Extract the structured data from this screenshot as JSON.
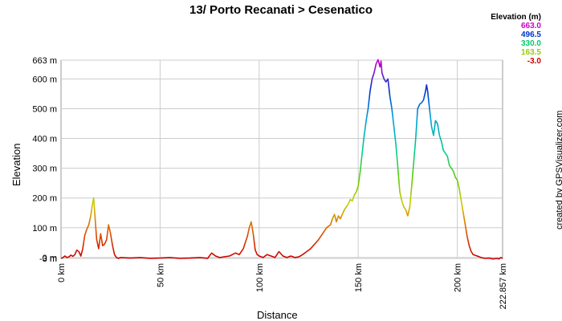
{
  "chart_data": {
    "type": "line",
    "title": "13/ Porto Recanati > Cesenatico",
    "xlabel": "Distance",
    "ylabel": "Elevation",
    "xlim": [
      0,
      222.857
    ],
    "ylim": [
      -3,
      663
    ],
    "x_ticks": [
      {
        "value": 0,
        "label": "0 km"
      },
      {
        "value": 50,
        "label": "50 km"
      },
      {
        "value": 100,
        "label": "100 km"
      },
      {
        "value": 150,
        "label": "150 km"
      },
      {
        "value": 200,
        "label": "200 km"
      },
      {
        "value": 222.857,
        "label": "222.857 km"
      }
    ],
    "y_ticks": [
      {
        "value": 663,
        "label": "663 m"
      },
      {
        "value": 600,
        "label": "600 m"
      },
      {
        "value": 500,
        "label": "500 m"
      },
      {
        "value": 400,
        "label": "400 m"
      },
      {
        "value": 300,
        "label": "300 m"
      },
      {
        "value": 200,
        "label": "200 m"
      },
      {
        "value": 100,
        "label": "100 m"
      },
      {
        "value": 0,
        "label": "0 m"
      },
      {
        "value": -3,
        "label": "-3 m"
      }
    ],
    "grid": true,
    "legend": {
      "title": "Elevation (m)",
      "entries": [
        {
          "label": "663.0",
          "color": "#cc00cc"
        },
        {
          "label": "496.5",
          "color": "#0033cc"
        },
        {
          "label": "330.0",
          "color": "#00cc66"
        },
        {
          "label": "163.5",
          "color": "#99cc00"
        },
        {
          "label": "-3.0",
          "color": "#cc0000"
        }
      ]
    },
    "series": [
      {
        "x": [
          0,
          1,
          2,
          3,
          4,
          5,
          6,
          7,
          8,
          9,
          10,
          11,
          12,
          13,
          14,
          15,
          16,
          16.5,
          17,
          18,
          19,
          20,
          21,
          22,
          23,
          24,
          25,
          26,
          27,
          28,
          29,
          30,
          35,
          40,
          45,
          50,
          55,
          60,
          65,
          70,
          74,
          76,
          78,
          80,
          85,
          88,
          90,
          92,
          94,
          95,
          96,
          97,
          98,
          99,
          100,
          102,
          104,
          106,
          108,
          110,
          112,
          114,
          116,
          118,
          120,
          122,
          124,
          126,
          128,
          130,
          132,
          134,
          136,
          137,
          138,
          139,
          140,
          141,
          142,
          143,
          144,
          145,
          146,
          147,
          148,
          149,
          150,
          151,
          152,
          153,
          154,
          155,
          156,
          157,
          158,
          159,
          160,
          161,
          161.5,
          162,
          163,
          164,
          165,
          166,
          167,
          168,
          169,
          170,
          171,
          172,
          173,
          174,
          175,
          176,
          177,
          178,
          179,
          180,
          181,
          182,
          183,
          184,
          184.5,
          185,
          186,
          187,
          188,
          189,
          190,
          191,
          192,
          193,
          194,
          195,
          196,
          197,
          198,
          199,
          200,
          201,
          202,
          203,
          204,
          205,
          206,
          207,
          208,
          210,
          212,
          214,
          216,
          218,
          220,
          221,
          222,
          222.857
        ],
        "y": [
          -3,
          0,
          5,
          0,
          2,
          8,
          4,
          10,
          25,
          20,
          5,
          30,
          75,
          95,
          110,
          140,
          185,
          200,
          150,
          60,
          30,
          80,
          40,
          45,
          60,
          110,
          80,
          40,
          10,
          0,
          -3,
          0,
          -2,
          0,
          -3,
          -2,
          0,
          -3,
          -2,
          0,
          -3,
          15,
          5,
          0,
          5,
          15,
          10,
          30,
          70,
          100,
          120,
          80,
          25,
          10,
          5,
          0,
          10,
          5,
          0,
          20,
          5,
          0,
          5,
          0,
          2,
          10,
          20,
          30,
          45,
          60,
          80,
          100,
          110,
          130,
          145,
          120,
          140,
          130,
          145,
          160,
          170,
          180,
          195,
          190,
          210,
          220,
          240,
          290,
          350,
          410,
          460,
          500,
          560,
          600,
          620,
          650,
          665,
          640,
          660,
          620,
          600,
          590,
          600,
          540,
          500,
          440,
          380,
          300,
          220,
          190,
          170,
          160,
          140,
          170,
          240,
          320,
          400,
          500,
          515,
          520,
          530,
          560,
          580,
          560,
          500,
          440,
          410,
          460,
          450,
          410,
          390,
          360,
          350,
          340,
          310,
          300,
          290,
          270,
          260,
          230,
          190,
          150,
          110,
          70,
          40,
          20,
          10,
          5,
          0,
          -3,
          -2,
          -5,
          -3,
          -5,
          0,
          -3
        ]
      }
    ]
  },
  "credit": "created by GPSVisualizer.com"
}
